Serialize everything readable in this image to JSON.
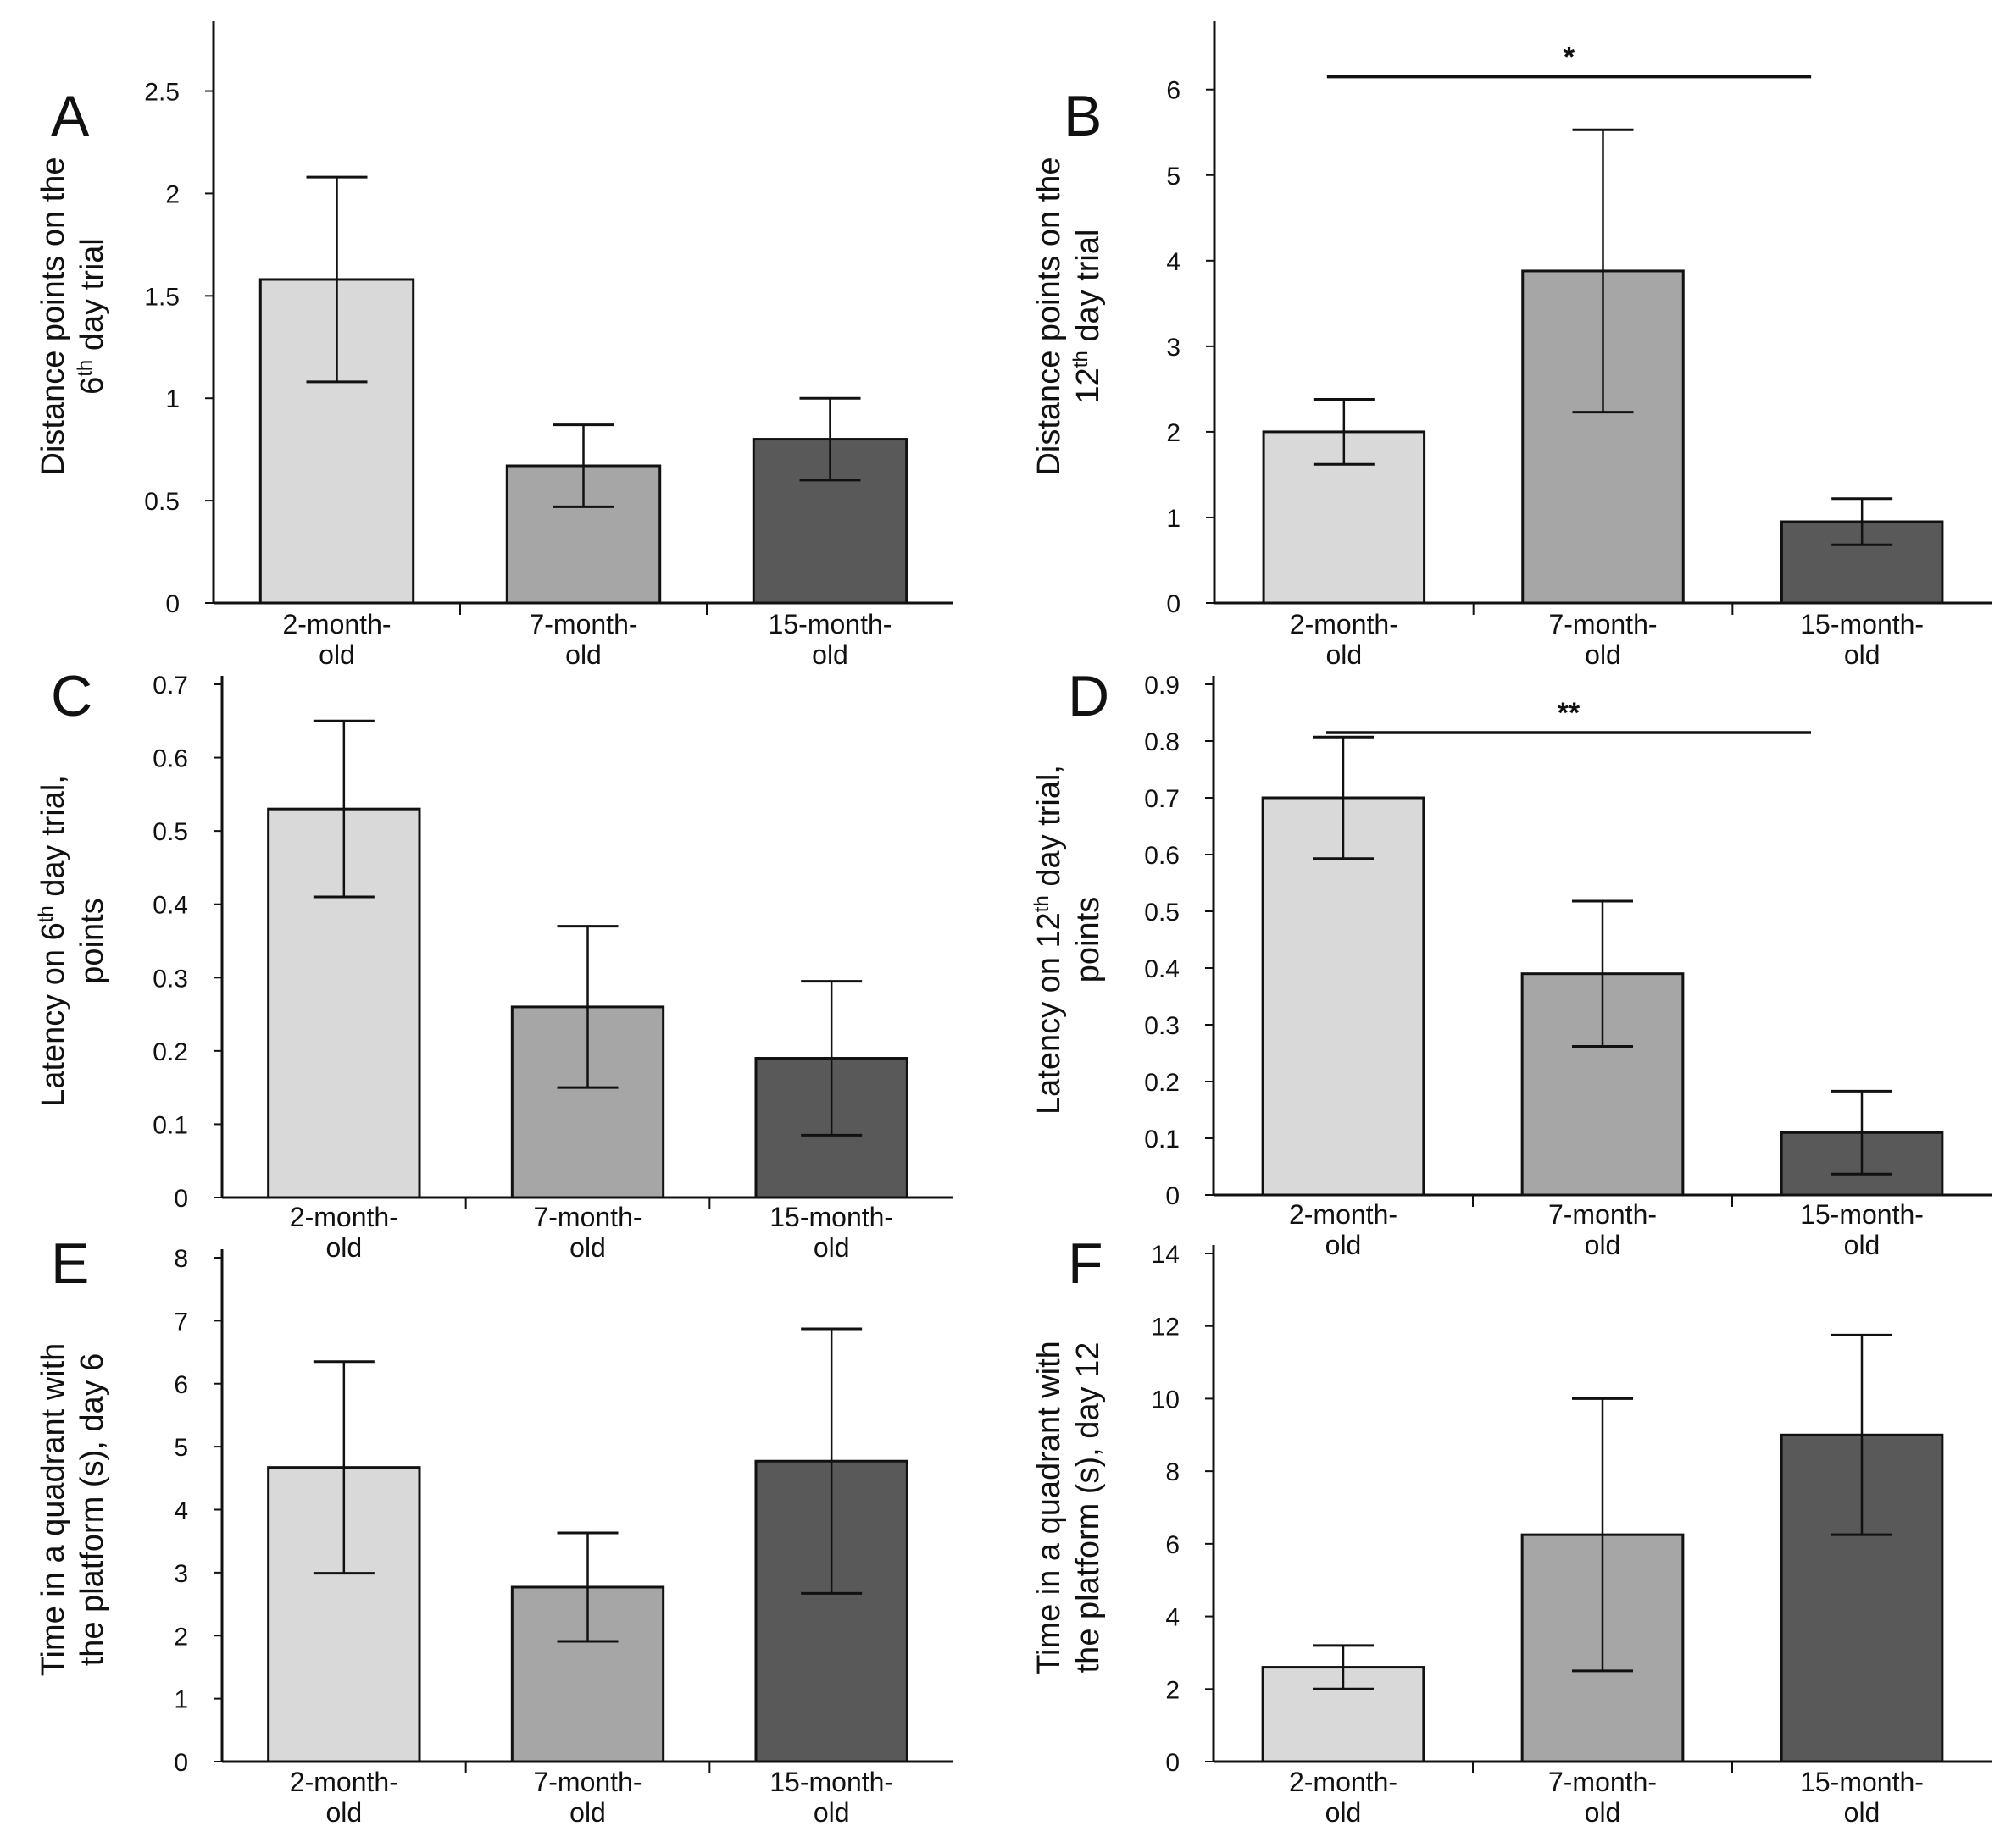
{
  "colors": {
    "c1": "#d9d9d9",
    "c2": "#a6a6a6",
    "c3": "#595959"
  },
  "chart_data": [
    {
      "panel": "A",
      "type": "bar",
      "categories": [
        [
          "2-month-",
          "old"
        ],
        [
          "7-month-",
          "old"
        ],
        [
          "15-month-",
          "old"
        ]
      ],
      "values": [
        1.58,
        0.67,
        0.8
      ],
      "errors": [
        0.5,
        0.2,
        0.2
      ],
      "ylabel": [
        "Distance points on the",
        "6th day trial"
      ],
      "ylim": [
        0,
        2.8
      ],
      "yticks": [
        "0",
        "0.5",
        "1",
        "1.5",
        "2",
        "2.5"
      ],
      "ytick_values": [
        0,
        0.5,
        1,
        1.5,
        2,
        2.5
      ],
      "significance": null
    },
    {
      "panel": "B",
      "type": "bar",
      "categories": [
        [
          "2-month-",
          "old"
        ],
        [
          "7-month-",
          "old"
        ],
        [
          "15-month-",
          "old"
        ]
      ],
      "values": [
        2.0,
        3.88,
        0.95
      ],
      "errors": [
        0.38,
        1.65,
        0.27
      ],
      "ylabel": [
        "Distance points on the",
        "12th day trial"
      ],
      "ylim": [
        0,
        6.7
      ],
      "yticks": [
        "0",
        "1",
        "2",
        "3",
        "4",
        "5",
        "6"
      ],
      "ytick_values": [
        0,
        1,
        2,
        3,
        4,
        5,
        6
      ],
      "significance": {
        "label": "*",
        "from": 0,
        "to": 2,
        "y": 6.15
      }
    },
    {
      "panel": "C",
      "type": "bar",
      "categories": [
        [
          "2-month-",
          "old"
        ],
        [
          "7-month-",
          "old"
        ],
        [
          "15-month-",
          "old"
        ]
      ],
      "values": [
        0.53,
        0.26,
        0.19
      ],
      "errors": [
        0.12,
        0.11,
        0.105
      ],
      "ylabel": [
        "Latency on 6th day trial,",
        "points"
      ],
      "ylim": [
        0,
        0.7
      ],
      "yticks": [
        "0",
        "0.1",
        "0.2",
        "0.3",
        "0.4",
        "0.5",
        "0.6",
        "0.7"
      ],
      "ytick_values": [
        0,
        0.1,
        0.2,
        0.3,
        0.4,
        0.5,
        0.6,
        0.7
      ],
      "significance": null
    },
    {
      "panel": "D",
      "type": "bar",
      "categories": [
        [
          "2-month-",
          "old"
        ],
        [
          "7-month-",
          "old"
        ],
        [
          "15-month-",
          "old"
        ]
      ],
      "values": [
        0.7,
        0.39,
        0.11
      ],
      "errors": [
        0.107,
        0.128,
        0.073
      ],
      "ylabel": [
        "Latency on 12th day trial,",
        "points"
      ],
      "ylim": [
        0,
        0.9
      ],
      "yticks": [
        "0",
        "0.1",
        "0.2",
        "0.3",
        "0.4",
        "0.5",
        "0.6",
        "0.7",
        "0.8",
        "0.9"
      ],
      "ytick_values": [
        0,
        0.1,
        0.2,
        0.3,
        0.4,
        0.5,
        0.6,
        0.7,
        0.8,
        0.9
      ],
      "significance": {
        "label": "**",
        "from": 0,
        "to": 2,
        "y": 0.815
      }
    },
    {
      "panel": "E",
      "type": "bar",
      "categories": [
        [
          "2-month-",
          "old"
        ],
        [
          "7-month-",
          "old"
        ],
        [
          "15-month-",
          "old"
        ]
      ],
      "values": [
        4.67,
        2.77,
        4.77
      ],
      "errors": [
        1.68,
        0.86,
        2.1
      ],
      "ylabel": [
        "Time in a quadrant with",
        "the platform (s), day 6"
      ],
      "ylim": [
        0,
        8
      ],
      "yticks": [
        "0",
        "1",
        "2",
        "3",
        "4",
        "5",
        "6",
        "7",
        "8"
      ],
      "ytick_values": [
        0,
        1,
        2,
        3,
        4,
        5,
        6,
        7,
        8
      ],
      "significance": null
    },
    {
      "panel": "F",
      "type": "bar",
      "categories": [
        [
          "2-month-",
          "old"
        ],
        [
          "7-month-",
          "old"
        ],
        [
          "15-month-",
          "old"
        ]
      ],
      "values": [
        2.6,
        6.25,
        9.0
      ],
      "errors": [
        0.6,
        3.75,
        2.75
      ],
      "ylabel": [
        "Time in a quadrant with",
        "the platform (s), day 12"
      ],
      "ylim": [
        0,
        14
      ],
      "yticks": [
        "0",
        "2",
        "4",
        "6",
        "8",
        "10",
        "12",
        "14"
      ],
      "ytick_values": [
        0,
        2,
        4,
        6,
        8,
        10,
        12,
        14
      ],
      "significance": null
    }
  ]
}
